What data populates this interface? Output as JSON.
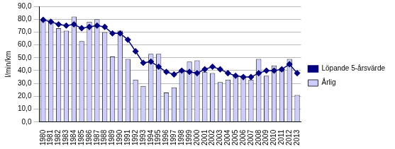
{
  "chart_data": {
    "type": "bar",
    "y_label": "l/min/km",
    "categories": [
      "1980",
      "1981",
      "1982",
      "1983",
      "1984",
      "1985",
      "1986",
      "1987",
      "1988",
      "1989",
      "1990",
      "1991",
      "1992",
      "1993",
      "1994",
      "1995",
      "1996",
      "1997",
      "1998",
      "1999",
      "2000",
      "2001",
      "2002",
      "2003",
      "2004",
      "2005",
      "2006",
      "2007",
      "2008",
      "2009",
      "2010",
      "2011",
      "2012",
      "2013"
    ],
    "series": [
      {
        "name": "Årlig",
        "type": "bar",
        "color": "#ccccff",
        "values": [
          79,
          78,
          73,
          71,
          82,
          63,
          78,
          80,
          70,
          51,
          71,
          49,
          33,
          28,
          53,
          53,
          23,
          27,
          41,
          47,
          48,
          39,
          38,
          31,
          33,
          36,
          36,
          33,
          49,
          36,
          44,
          40,
          49,
          21
        ]
      },
      {
        "name": "Löpande 5-årsvärde",
        "type": "line",
        "color": "#000080",
        "marker": "diamond",
        "values": [
          79.5,
          78,
          76,
          75,
          76,
          73,
          74,
          75,
          74,
          69,
          69,
          64,
          55,
          46,
          47,
          43,
          39,
          37,
          40,
          39,
          38,
          41,
          43,
          41,
          38,
          36,
          35,
          35,
          38,
          40,
          40,
          41,
          45,
          38
        ]
      }
    ],
    "ylim": [
      0,
      90
    ],
    "yticks": [
      {
        "value": 0,
        "label": "0,0"
      },
      {
        "value": 10,
        "label": "10,0"
      },
      {
        "value": 20,
        "label": "20,0"
      },
      {
        "value": 30,
        "label": "30,0"
      },
      {
        "value": 40,
        "label": "40,0"
      },
      {
        "value": 50,
        "label": "50,0"
      },
      {
        "value": 60,
        "label": "60,0"
      },
      {
        "value": 70,
        "label": "70,0"
      },
      {
        "value": 80,
        "label": "80,0"
      },
      {
        "value": 90,
        "label": "90,0"
      }
    ],
    "grid": true,
    "legend": "right"
  }
}
